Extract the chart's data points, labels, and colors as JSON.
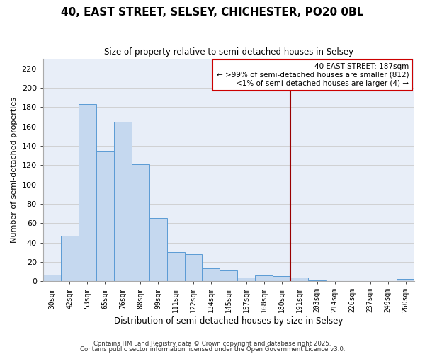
{
  "title": "40, EAST STREET, SELSEY, CHICHESTER, PO20 0BL",
  "subtitle": "Size of property relative to semi-detached houses in Selsey",
  "xlabel": "Distribution of semi-detached houses by size in Selsey",
  "ylabel": "Number of semi-detached properties",
  "categories": [
    "30sqm",
    "42sqm",
    "53sqm",
    "65sqm",
    "76sqm",
    "88sqm",
    "99sqm",
    "111sqm",
    "122sqm",
    "134sqm",
    "145sqm",
    "157sqm",
    "168sqm",
    "180sqm",
    "191sqm",
    "203sqm",
    "214sqm",
    "226sqm",
    "237sqm",
    "249sqm",
    "260sqm"
  ],
  "values": [
    7,
    47,
    183,
    135,
    165,
    121,
    65,
    30,
    28,
    13,
    11,
    4,
    6,
    5,
    4,
    1,
    0,
    0,
    0,
    0,
    2
  ],
  "bar_color": "#c5d8ef",
  "bar_edge_color": "#5b9bd5",
  "grid_color": "#cccccc",
  "plot_bg_color": "#e8eef8",
  "fig_bg_color": "#ffffff",
  "vline_x_index": 14,
  "vline_color": "#990000",
  "annotation_title": "40 EAST STREET: 187sqm",
  "annotation_line1": "← >99% of semi-detached houses are smaller (812)",
  "annotation_line2": "<1% of semi-detached houses are larger (4) →",
  "annotation_box_color": "#ffffff",
  "annotation_box_edge": "#cc0000",
  "ylim": [
    0,
    230
  ],
  "yticks": [
    0,
    20,
    40,
    60,
    80,
    100,
    120,
    140,
    160,
    180,
    200,
    220
  ],
  "footer1": "Contains HM Land Registry data © Crown copyright and database right 2025.",
  "footer2": "Contains public sector information licensed under the Open Government Licence v3.0."
}
